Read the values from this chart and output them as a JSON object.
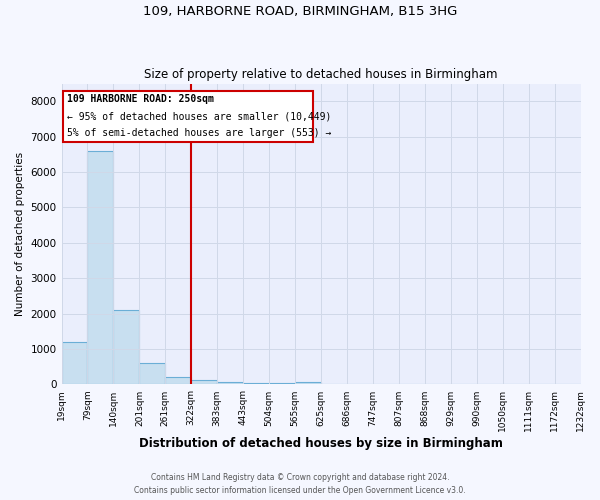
{
  "title_line1": "109, HARBORNE ROAD, BIRMINGHAM, B15 3HG",
  "title_line2": "Size of property relative to detached houses in Birmingham",
  "xlabel": "Distribution of detached houses by size in Birmingham",
  "ylabel": "Number of detached properties",
  "footnote": "Contains HM Land Registry data © Crown copyright and database right 2024.\nContains public sector information licensed under the Open Government Licence v3.0.",
  "annotation_line1": "109 HARBORNE ROAD: 250sqm",
  "annotation_line2": "← 95% of detached houses are smaller (10,449)",
  "annotation_line3": "5% of semi-detached houses are larger (553) →",
  "bar_values": [
    1200,
    6600,
    2100,
    600,
    200,
    120,
    70,
    40,
    40,
    60,
    0,
    0,
    0,
    0,
    0,
    0,
    0,
    0,
    0,
    0
  ],
  "bin_labels": [
    "19sqm",
    "79sqm",
    "140sqm",
    "201sqm",
    "261sqm",
    "322sqm",
    "383sqm",
    "443sqm",
    "504sqm",
    "565sqm",
    "625sqm",
    "686sqm",
    "747sqm",
    "807sqm",
    "868sqm",
    "929sqm",
    "990sqm",
    "1050sqm",
    "1111sqm",
    "1172sqm",
    "1232sqm"
  ],
  "bar_color": "#c8dff0",
  "bar_edge_color": "#6baed6",
  "red_line_x": 4.5,
  "ylim": [
    0,
    8500
  ],
  "yticks": [
    0,
    1000,
    2000,
    3000,
    4000,
    5000,
    6000,
    7000,
    8000
  ],
  "annotation_box_color": "#cc0000",
  "grid_color": "#d0d8e8",
  "background_color": "#f5f7ff",
  "plot_bg_color": "#eaeefc"
}
